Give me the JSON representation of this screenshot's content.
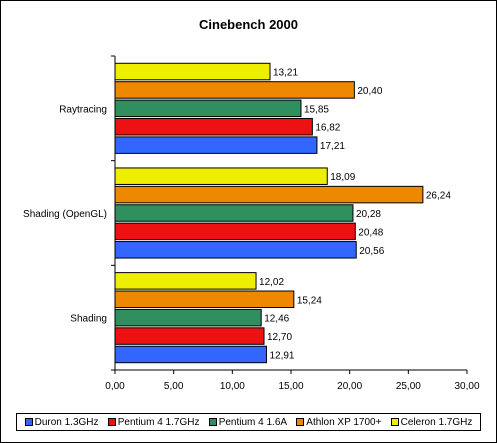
{
  "chart_data": {
    "type": "bar",
    "orientation": "horizontal",
    "title": "Cinebench 2000",
    "xlabel": "",
    "ylabel": "",
    "xlim": [
      0,
      30
    ],
    "x_ticks": [
      "0,00",
      "5,00",
      "10,00",
      "15,00",
      "20,00",
      "25,00",
      "30,00"
    ],
    "grid": false,
    "legend_position": "bottom",
    "categories": [
      "Raytracing",
      "Shading (OpenGL)",
      "Shading"
    ],
    "series": [
      {
        "name": "Duron 1.3GHz",
        "color": "#3366ff",
        "values": [
          17.21,
          20.56,
          12.91
        ],
        "labels": [
          "17,21",
          "20,56",
          "12,91"
        ]
      },
      {
        "name": "Pentium 4 1.7GHz",
        "color": "#ee1111",
        "values": [
          16.82,
          20.48,
          12.7
        ],
        "labels": [
          "16,82",
          "20,48",
          "12,70"
        ]
      },
      {
        "name": "Pentium 4 1.6A",
        "color": "#2f8f5f",
        "values": [
          15.85,
          20.28,
          12.46
        ],
        "labels": [
          "15,85",
          "20,28",
          "12,46"
        ]
      },
      {
        "name": "Athlon XP 1700+",
        "color": "#ee8800",
        "values": [
          20.4,
          26.24,
          15.24
        ],
        "labels": [
          "20,40",
          "26,24",
          "15,24"
        ]
      },
      {
        "name": "Celeron 1.7GHz",
        "color": "#eeee00",
        "values": [
          13.21,
          18.09,
          12.02
        ],
        "labels": [
          "13,21",
          "18,09",
          "12,02"
        ]
      }
    ]
  }
}
